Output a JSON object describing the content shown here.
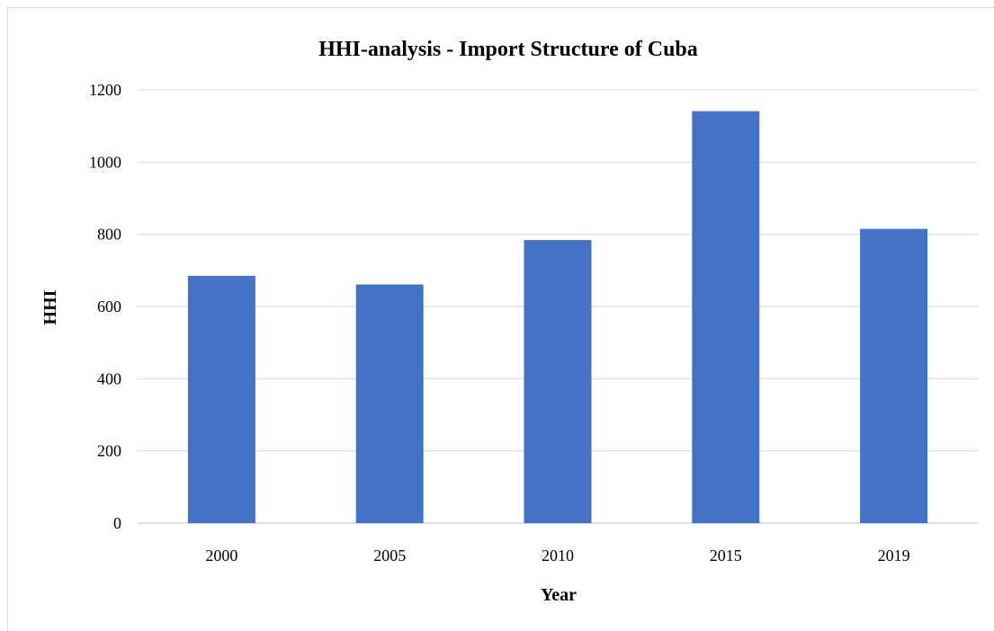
{
  "chart_data": {
    "type": "bar",
    "title": "HHI-analysis - Import Structure of Cuba",
    "xlabel": "Year",
    "ylabel": "HHI",
    "categories": [
      "2000",
      "2005",
      "2010",
      "2015",
      "2019"
    ],
    "values": [
      685,
      661,
      784,
      1141,
      815
    ],
    "ylim": [
      0,
      1200
    ],
    "yticks": [
      0,
      200,
      400,
      600,
      800,
      1000,
      1200
    ],
    "grid": true,
    "legend": "none",
    "bar_color": "#4472c4"
  }
}
